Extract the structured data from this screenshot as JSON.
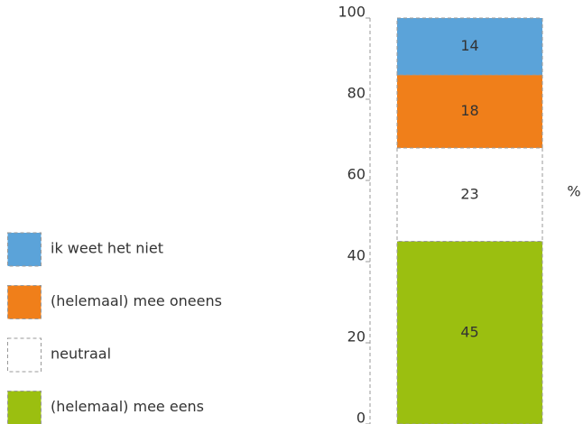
{
  "chart_data": {
    "type": "stacked_bar",
    "categories": [
      null
    ],
    "ylabel": "%",
    "ylim": [
      0,
      100
    ],
    "yticks": [
      0,
      20,
      40,
      60,
      80,
      100
    ],
    "legend": "left",
    "series": [
      {
        "name": "(helemaal) mee eens",
        "color": "#9bbf10",
        "values": [
          45
        ]
      },
      {
        "name": "neutraal",
        "color": "#ffffff",
        "values": [
          23
        ]
      },
      {
        "name": "(helemaal) mee oneens",
        "color": "#f07f1a",
        "values": [
          18
        ]
      },
      {
        "name": "ik weet het niet",
        "color": "#5ba3d9",
        "values": [
          14
        ]
      }
    ]
  }
}
